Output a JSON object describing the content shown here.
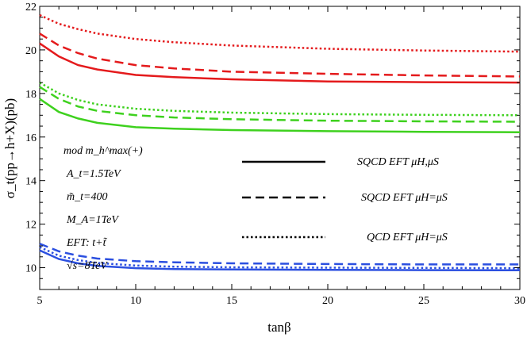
{
  "chart_data": {
    "type": "line",
    "xlabel": "tanβ",
    "ylabel": "σ_t(pp→h+X)(pb)",
    "xlim": [
      5,
      30
    ],
    "ylim": [
      9,
      22
    ],
    "xticks": [
      "5",
      "10",
      "15",
      "20",
      "25",
      "30"
    ],
    "yticks": [
      "10",
      "12",
      "14",
      "16",
      "18",
      "20",
      "22"
    ],
    "grid": false,
    "legend_position": "center-right",
    "legend": [
      {
        "label": "SQCD EFT μH,μS",
        "style": "solid"
      },
      {
        "label": "SQCD EFT μH=μS",
        "style": "dashed"
      },
      {
        "label": "QCD EFT μH=μS",
        "style": "dotted"
      }
    ],
    "parameters": [
      "mod m_h^max(+)",
      "A_t=1.5TeV",
      "m̃_t=400",
      "M_A=1TeV",
      "EFT: t+t̃",
      "√s=8TeV"
    ],
    "series": [
      {
        "color": "#e41a1c",
        "style": "dotted",
        "x": [
          5,
          6,
          7,
          8,
          10,
          12,
          15,
          20,
          25,
          30
        ],
        "y": [
          21.6,
          21.2,
          20.95,
          20.75,
          20.5,
          20.35,
          20.2,
          20.05,
          19.97,
          19.92
        ]
      },
      {
        "color": "#e41a1c",
        "style": "dashed",
        "x": [
          5,
          6,
          7,
          8,
          10,
          12,
          15,
          20,
          25,
          30
        ],
        "y": [
          20.75,
          20.2,
          19.85,
          19.6,
          19.3,
          19.15,
          19.0,
          18.9,
          18.83,
          18.78
        ]
      },
      {
        "color": "#e41a1c",
        "style": "solid",
        "x": [
          5,
          6,
          7,
          8,
          10,
          12,
          15,
          20,
          25,
          30
        ],
        "y": [
          20.3,
          19.7,
          19.3,
          19.1,
          18.85,
          18.75,
          18.65,
          18.55,
          18.52,
          18.5
        ]
      },
      {
        "color": "#3ed11e",
        "style": "dotted",
        "x": [
          5,
          6,
          7,
          8,
          10,
          12,
          15,
          20,
          25,
          30
        ],
        "y": [
          18.5,
          18.0,
          17.7,
          17.5,
          17.3,
          17.2,
          17.12,
          17.05,
          17.02,
          17.0
        ]
      },
      {
        "color": "#3ed11e",
        "style": "dashed",
        "x": [
          5,
          6,
          7,
          8,
          10,
          12,
          15,
          20,
          25,
          30
        ],
        "y": [
          18.3,
          17.75,
          17.4,
          17.2,
          17.0,
          16.9,
          16.82,
          16.75,
          16.72,
          16.7
        ]
      },
      {
        "color": "#3ed11e",
        "style": "solid",
        "x": [
          5,
          6,
          7,
          8,
          10,
          12,
          15,
          20,
          25,
          30
        ],
        "y": [
          17.75,
          17.15,
          16.85,
          16.65,
          16.45,
          16.38,
          16.32,
          16.27,
          16.24,
          16.22
        ]
      },
      {
        "color": "#2b4fe0",
        "style": "dashed",
        "x": [
          5,
          6,
          7,
          8,
          10,
          12,
          15,
          20,
          25,
          30
        ],
        "y": [
          11.1,
          10.75,
          10.55,
          10.42,
          10.3,
          10.25,
          10.2,
          10.17,
          10.15,
          10.15
        ]
      },
      {
        "color": "#2b4fe0",
        "style": "dotted",
        "x": [
          5,
          6,
          7,
          8,
          10,
          12,
          15,
          20,
          25,
          30
        ],
        "y": [
          10.95,
          10.55,
          10.35,
          10.22,
          10.1,
          10.05,
          10.02,
          10.0,
          9.99,
          9.98
        ]
      },
      {
        "color": "#2b4fe0",
        "style": "solid",
        "x": [
          5,
          6,
          7,
          8,
          10,
          12,
          15,
          20,
          25,
          30
        ],
        "y": [
          10.8,
          10.4,
          10.2,
          10.08,
          9.98,
          9.94,
          9.92,
          9.9,
          9.89,
          9.88
        ]
      }
    ]
  }
}
